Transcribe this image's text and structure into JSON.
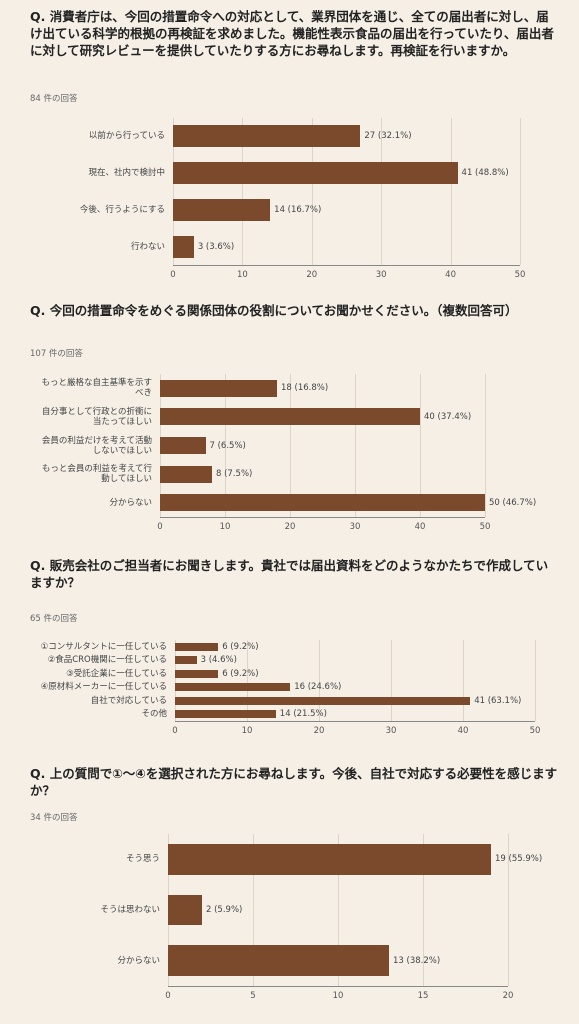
{
  "chart_data": [
    {
      "type": "bar",
      "orientation": "horizontal",
      "title": "Q. 消費者庁は、今回の措置命令への対応として、業界団体を通じ、全ての届出者に対し、届け出ている科学的根拠の再検証を求めました。機能性表示食品の届出を行っていたり、届出者に対して研究レビューを提供していたりする方にお尋ねします。再検証を行いますか。",
      "subtitle": "84 件の回答",
      "categories": [
        "以前から行っている",
        "現在、社内で検討中",
        "今後、行うようにする",
        "行わない"
      ],
      "values": [
        27,
        41,
        14,
        3
      ],
      "value_labels": [
        "27 (32.1%)",
        "41 (48.8%)",
        "14 (16.7%)",
        "3 (3.6%)"
      ],
      "color": "#7b4a2d",
      "xlim": [
        0,
        50
      ],
      "xticks": [
        0,
        10,
        20,
        30,
        40,
        50
      ],
      "grid": true
    },
    {
      "type": "bar",
      "orientation": "horizontal",
      "title": "Q. 今回の措置命令をめぐる関係団体の役割についてお聞かせください。（複数回答可）",
      "subtitle": "107 件の回答",
      "categories": [
        "もっと厳格な自主基準を示すべき",
        "自分事として行政との折衝に当たってほしい",
        "会員の利益だけを考えて活動しないでほしい",
        "もっと会員の利益を考えて行動してほしい",
        "分からない"
      ],
      "values": [
        18,
        40,
        7,
        8,
        50
      ],
      "value_labels": [
        "18 (16.8%)",
        "40 (37.4%)",
        "7 (6.5%)",
        "8 (7.5%)",
        "50 (46.7%)"
      ],
      "color": "#7b4a2d",
      "xlim": [
        0,
        50
      ],
      "xticks": [
        0,
        10,
        20,
        30,
        40,
        50
      ],
      "grid": true
    },
    {
      "type": "bar",
      "orientation": "horizontal",
      "title": "Q. 販売会社のご担当者にお聞きします。貴社では届出資料をどのようなかたちで作成していますか？",
      "subtitle": "65 件の回答",
      "categories": [
        "①コンサルタントに一任している",
        "②食品CRO機関に一任している",
        "③受託企業に一任している",
        "④原材料メーカーに一任している",
        "自社で対応している",
        "その他"
      ],
      "values": [
        6,
        3,
        6,
        16,
        41,
        14
      ],
      "value_labels": [
        "6 (9.2%)",
        "3 (4.6%)",
        "6 (9.2%)",
        "16 (24.6%)",
        "41 (63.1%)",
        "14 (21.5%)"
      ],
      "color": "#7b4a2d",
      "xlim": [
        0,
        50
      ],
      "xticks": [
        0,
        10,
        20,
        30,
        40,
        50
      ],
      "grid": true
    },
    {
      "type": "bar",
      "orientation": "horizontal",
      "title": "Q. 上の質問で①〜④を選択された方にお尋ねします。今後、自社で対応する必要性を感じますか？",
      "subtitle": "34 件の回答",
      "categories": [
        "そう思う",
        "そうは思わない",
        "分からない"
      ],
      "values": [
        19,
        2,
        13
      ],
      "value_labels": [
        "19 (55.9%)",
        "2 (5.9%)",
        "13 (38.2%)"
      ],
      "color": "#7b4a2d",
      "xlim": [
        0,
        20
      ],
      "xticks": [
        0,
        5,
        10,
        15,
        20
      ],
      "grid": true
    }
  ]
}
